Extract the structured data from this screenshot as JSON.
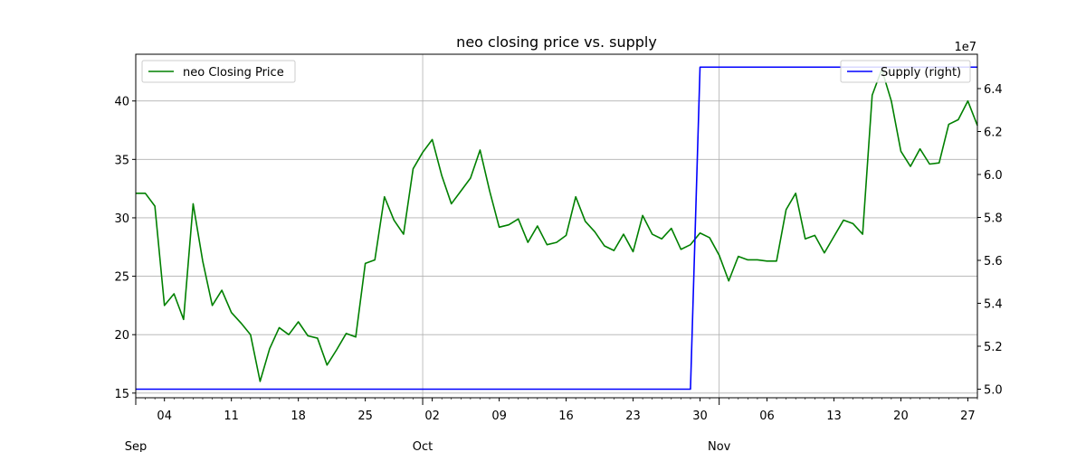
{
  "chart_data": {
    "type": "line",
    "title": "neo closing price vs. supply",
    "xlabel": "",
    "ylabel": "",
    "y_right_label": "",
    "x_range": [
      "2017-09-01",
      "2017-11-28"
    ],
    "ylim": [
      14.6,
      44.0
    ],
    "ylim_right": [
      49600000.0,
      65600000.0
    ],
    "y_right_offset_label": "1e7",
    "grid": true,
    "x_ticks_minor": [
      {
        "date": "2017-09-04",
        "label": "04"
      },
      {
        "date": "2017-09-11",
        "label": "11"
      },
      {
        "date": "2017-09-18",
        "label": "18"
      },
      {
        "date": "2017-09-25",
        "label": "25"
      },
      {
        "date": "2017-10-02",
        "label": "02"
      },
      {
        "date": "2017-10-09",
        "label": "09"
      },
      {
        "date": "2017-10-16",
        "label": "16"
      },
      {
        "date": "2017-10-23",
        "label": "23"
      },
      {
        "date": "2017-10-30",
        "label": "30"
      },
      {
        "date": "2017-11-06",
        "label": "06"
      },
      {
        "date": "2017-11-13",
        "label": "13"
      },
      {
        "date": "2017-11-20",
        "label": "20"
      },
      {
        "date": "2017-11-27",
        "label": "27"
      }
    ],
    "x_ticks_major": [
      {
        "date": "2017-09-01",
        "label": "Sep"
      },
      {
        "date": "2017-10-01",
        "label": "Oct"
      },
      {
        "date": "2017-11-01",
        "label": "Nov"
      }
    ],
    "y_ticks_left": [
      15,
      20,
      25,
      30,
      35,
      40
    ],
    "y_ticks_right": [
      {
        "value": 50000000.0,
        "label": "5.0"
      },
      {
        "value": 52000000.0,
        "label": "5.2"
      },
      {
        "value": 54000000.0,
        "label": "5.4"
      },
      {
        "value": 56000000.0,
        "label": "5.6"
      },
      {
        "value": 58000000.0,
        "label": "5.8"
      },
      {
        "value": 60000000.0,
        "label": "6.0"
      },
      {
        "value": 62000000.0,
        "label": "6.2"
      },
      {
        "value": 64000000.0,
        "label": "6.4"
      }
    ],
    "series": [
      {
        "name": "neo Closing Price",
        "axis": "left",
        "color": "#008000",
        "legend_position": "upper-left",
        "x": [
          "2017-09-01",
          "2017-09-02",
          "2017-09-03",
          "2017-09-04",
          "2017-09-05",
          "2017-09-06",
          "2017-09-07",
          "2017-09-08",
          "2017-09-09",
          "2017-09-10",
          "2017-09-11",
          "2017-09-12",
          "2017-09-13",
          "2017-09-14",
          "2017-09-15",
          "2017-09-16",
          "2017-09-17",
          "2017-09-18",
          "2017-09-19",
          "2017-09-20",
          "2017-09-21",
          "2017-09-22",
          "2017-09-23",
          "2017-09-24",
          "2017-09-25",
          "2017-09-26",
          "2017-09-27",
          "2017-09-28",
          "2017-09-29",
          "2017-09-30",
          "2017-10-01",
          "2017-10-02",
          "2017-10-03",
          "2017-10-04",
          "2017-10-05",
          "2017-10-06",
          "2017-10-07",
          "2017-10-08",
          "2017-10-09",
          "2017-10-10",
          "2017-10-11",
          "2017-10-12",
          "2017-10-13",
          "2017-10-14",
          "2017-10-15",
          "2017-10-16",
          "2017-10-17",
          "2017-10-18",
          "2017-10-19",
          "2017-10-20",
          "2017-10-21",
          "2017-10-22",
          "2017-10-23",
          "2017-10-24",
          "2017-10-25",
          "2017-10-26",
          "2017-10-27",
          "2017-10-28",
          "2017-10-29",
          "2017-10-30",
          "2017-10-31",
          "2017-11-01",
          "2017-11-02",
          "2017-11-03",
          "2017-11-04",
          "2017-11-05",
          "2017-11-06",
          "2017-11-07",
          "2017-11-08",
          "2017-11-09",
          "2017-11-10",
          "2017-11-11",
          "2017-11-12",
          "2017-11-13",
          "2017-11-14",
          "2017-11-15",
          "2017-11-16",
          "2017-11-17",
          "2017-11-18",
          "2017-11-19",
          "2017-11-20",
          "2017-11-21",
          "2017-11-22",
          "2017-11-23",
          "2017-11-24",
          "2017-11-25",
          "2017-11-26",
          "2017-11-27",
          "2017-11-28"
        ],
        "values": [
          32.1,
          32.1,
          31.0,
          22.5,
          23.5,
          21.3,
          31.2,
          26.3,
          22.5,
          23.8,
          21.9,
          21.0,
          20.0,
          16.0,
          18.8,
          20.6,
          20.0,
          21.1,
          19.9,
          19.7,
          17.4,
          18.7,
          20.1,
          19.8,
          26.1,
          26.4,
          31.8,
          29.8,
          28.6,
          34.2,
          35.6,
          36.7,
          33.6,
          31.2,
          32.3,
          33.4,
          35.8,
          32.3,
          29.2,
          29.4,
          29.9,
          27.9,
          29.3,
          27.7,
          27.9,
          28.5,
          31.8,
          29.7,
          28.8,
          27.6,
          27.2,
          28.6,
          27.1,
          30.2,
          28.6,
          28.2,
          29.1,
          27.3,
          27.7,
          28.7,
          28.3,
          26.8,
          24.6,
          26.7,
          26.4,
          26.4,
          26.3,
          26.3,
          30.7,
          32.1,
          28.2,
          28.5,
          27.0,
          28.4,
          29.8,
          29.5,
          28.6,
          40.5,
          42.7,
          40.0,
          35.7,
          34.4,
          35.9,
          34.6,
          34.7,
          38.0,
          38.4,
          40.0,
          37.9
        ]
      },
      {
        "name": "Supply (right)",
        "axis": "right",
        "color": "#0000ff",
        "legend_position": "upper-right",
        "x": [
          "2017-09-01",
          "2017-10-29",
          "2017-10-30",
          "2017-11-28"
        ],
        "values": [
          50000000,
          50000000,
          65000000,
          65000000
        ]
      }
    ]
  }
}
